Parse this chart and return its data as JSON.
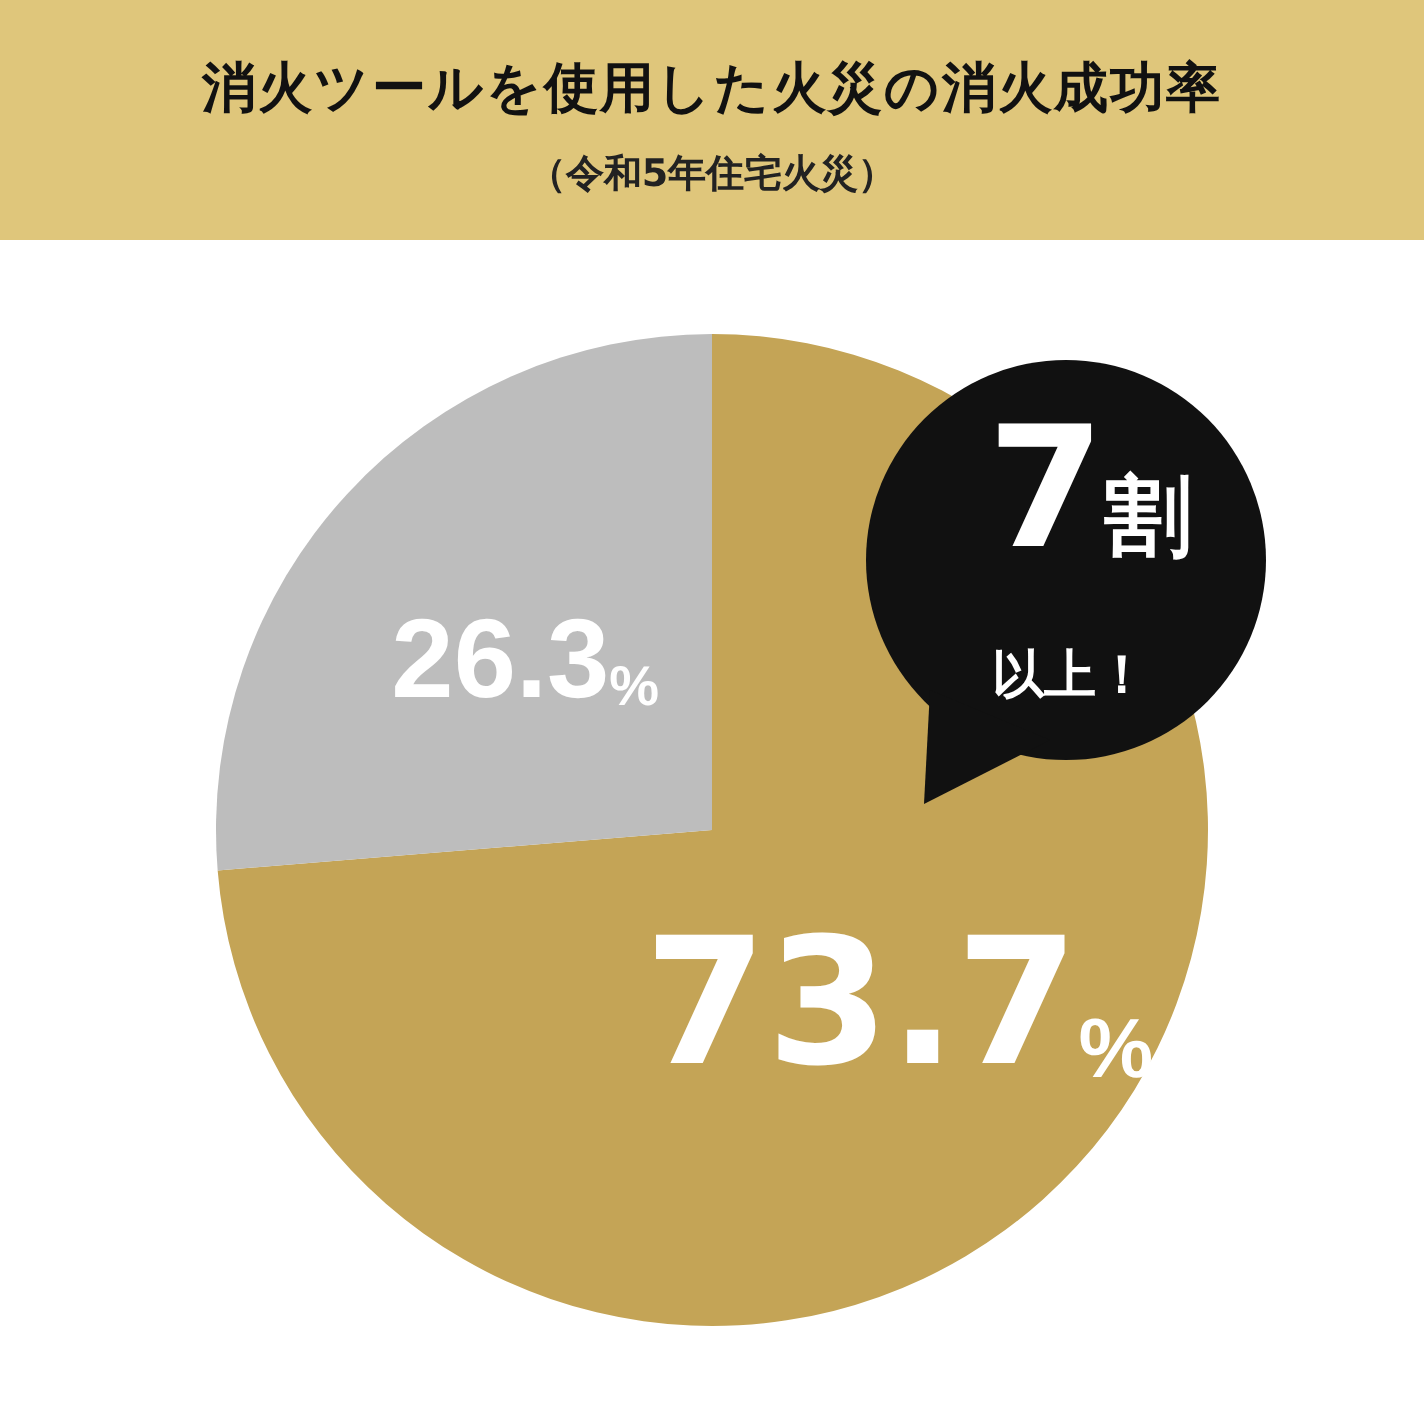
{
  "chart_data": {
    "type": "pie",
    "title": "消火ツールを使用した火災の消火成功率",
    "subtitle": "（令和5年住宅火災）",
    "categories": [
      null,
      null
    ],
    "values": [
      73.7,
      26.3
    ],
    "colors": [
      "#c4a456",
      "#bdbdbd"
    ],
    "value_labels": [
      "73.7%",
      "26.3%"
    ],
    "annotations": [
      "7割",
      "以上！"
    ]
  }
}
